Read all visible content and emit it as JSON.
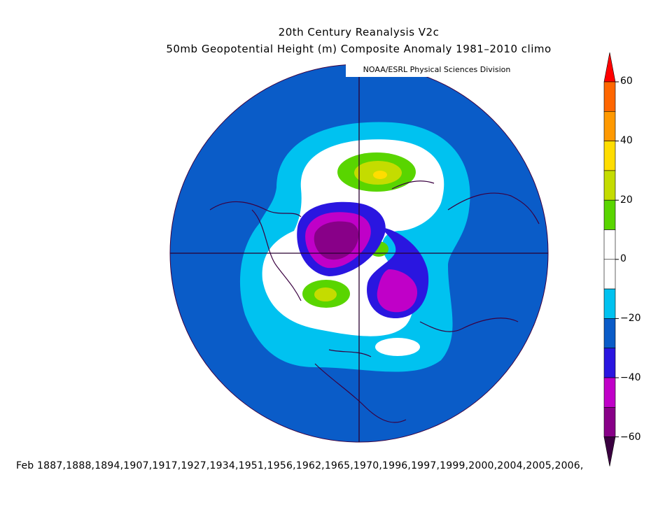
{
  "title_line1": "20th Century Reanalysis V2c",
  "title_line2": "50mb Geopotential Height (m) Composite Anomaly 1981–2010 climo",
  "credit": "NOAA/ESRL Physical Sciences Division",
  "footer": "Feb 1887,1888,1894,1907,1917,1927,1934,1951,1956,1962,1965,1970,1996,1997,1999,2000,2004,2005,2006,",
  "colorbar": {
    "ticks": [
      "60",
      "40",
      "20",
      "0",
      "−20",
      "−40",
      "−60"
    ],
    "levels": [
      {
        "from": 60,
        "to": null,
        "color": "#ff0000"
      },
      {
        "from": 50,
        "to": 60,
        "color": "#ff6600"
      },
      {
        "from": 40,
        "to": 50,
        "color": "#ff9900"
      },
      {
        "from": 30,
        "to": 40,
        "color": "#ffdd00"
      },
      {
        "from": 20,
        "to": 30,
        "color": "#c4dc00"
      },
      {
        "from": 10,
        "to": 20,
        "color": "#59d500"
      },
      {
        "from": 0,
        "to": 10,
        "color": "#ffffff"
      },
      {
        "from": -10,
        "to": 0,
        "color": "#ffffff"
      },
      {
        "from": -20,
        "to": -10,
        "color": "#00c2f0"
      },
      {
        "from": -30,
        "to": -20,
        "color": "#0a5cc8"
      },
      {
        "from": -40,
        "to": -30,
        "color": "#2a16e0"
      },
      {
        "from": -50,
        "to": -40,
        "color": "#c000c8"
      },
      {
        "from": -60,
        "to": -50,
        "color": "#880088"
      },
      {
        "from": null,
        "to": -60,
        "color": "#3a0040"
      }
    ]
  },
  "map": {
    "projection": "north-polar-stereographic",
    "background_anomaly_color": "#0a5cc8",
    "coastline_color": "#3a0040"
  }
}
